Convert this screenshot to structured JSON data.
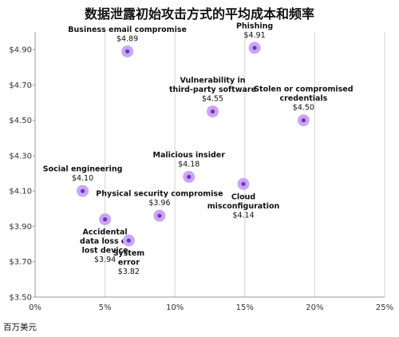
{
  "chart_data": {
    "type": "scatter",
    "title": "数据泄露初始攻击方式的平均成本和频率",
    "unit_label": "百万美元",
    "xlim": [
      0,
      25
    ],
    "ylim": [
      3.5,
      5.0
    ],
    "x_ticks": [
      "0%",
      "5%",
      "10%",
      "15%",
      "20%",
      "25%"
    ],
    "y_ticks": [
      "$3.50",
      "$3.70",
      "$3.90",
      "$4.10",
      "$4.30",
      "$4.50",
      "$4.70",
      "$4.90"
    ],
    "grid": "vertical",
    "points": [
      {
        "name": "Business email compromise",
        "value_label": "$4.89",
        "x": 6.6,
        "y": 4.89,
        "label_pos": "above"
      },
      {
        "name": "Phishing",
        "value_label": "$4.91",
        "x": 15.7,
        "y": 4.91,
        "label_pos": "above"
      },
      {
        "name": "Vulnerability in\nthird-party software",
        "value_label": "$4.55",
        "x": 12.7,
        "y": 4.55,
        "label_pos": "above"
      },
      {
        "name": "Stolen or compromised\ncredentials",
        "value_label": "$4.50",
        "x": 19.2,
        "y": 4.5,
        "label_pos": "above"
      },
      {
        "name": "Malicious insider",
        "value_label": "$4.18",
        "x": 11.0,
        "y": 4.18,
        "label_pos": "above"
      },
      {
        "name": "Social engineering",
        "value_label": "$4.10",
        "x": 3.4,
        "y": 4.1,
        "label_pos": "above"
      },
      {
        "name": "Cloud\nmisconfiguration",
        "value_label": "$4.14",
        "x": 14.9,
        "y": 4.14,
        "label_pos": "below"
      },
      {
        "name": "Physical security compromise",
        "value_label": "$3.96",
        "x": 8.9,
        "y": 3.96,
        "label_pos": "above"
      },
      {
        "name": "Accidental\ndata loss or\nlost device",
        "value_label": "$3.94",
        "x": 5.0,
        "y": 3.94,
        "label_pos": "below"
      },
      {
        "name": "System\nerror",
        "value_label": "$3.82",
        "x": 6.7,
        "y": 3.82,
        "label_pos": "below"
      }
    ],
    "colors": {
      "dot_outer": "#c9a6f5",
      "dot_inner": "#6e31c4",
      "grid": "#d4d4d4",
      "axis": "#999999"
    }
  }
}
